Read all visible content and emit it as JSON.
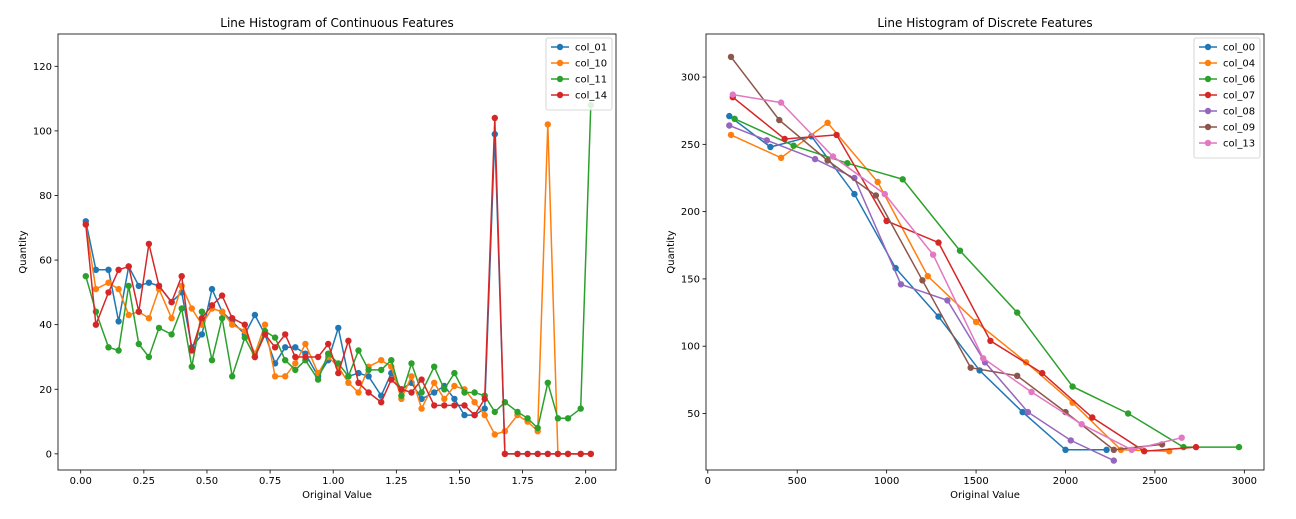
{
  "chart_data": [
    {
      "type": "line",
      "title": "Line Histogram of Continuous Features",
      "xlabel": "Original Value",
      "ylabel": "Quantity",
      "xlim": [
        -0.09,
        2.12
      ],
      "ylim": [
        -5,
        130
      ],
      "xticks": [
        0.0,
        0.25,
        0.5,
        0.75,
        1.0,
        1.25,
        1.5,
        1.75,
        2.0
      ],
      "xtick_labels": [
        "0.00",
        "0.25",
        "0.50",
        "0.75",
        "1.00",
        "1.25",
        "1.50",
        "1.75",
        "2.00"
      ],
      "yticks": [
        0,
        20,
        40,
        60,
        80,
        100,
        120
      ],
      "ytick_labels": [
        "0",
        "20",
        "40",
        "60",
        "80",
        "100",
        "120"
      ],
      "grid": false,
      "legend": "top-right",
      "series": [
        {
          "name": "col_01",
          "color": "#1f77b4",
          "x": [
            0.02,
            0.06,
            0.11,
            0.15,
            0.19,
            0.23,
            0.27,
            0.31,
            0.36,
            0.4,
            0.44,
            0.48,
            0.52,
            0.56,
            0.6,
            0.65,
            0.69,
            0.73,
            0.77,
            0.81,
            0.85,
            0.89,
            0.94,
            0.98,
            1.02,
            1.06,
            1.1,
            1.14,
            1.19,
            1.23,
            1.27,
            1.31,
            1.35,
            1.4,
            1.44,
            1.48,
            1.52,
            1.56,
            1.6,
            1.64,
            1.68,
            1.73,
            1.77,
            1.81,
            1.85,
            1.89,
            1.93,
            1.98,
            2.02
          ],
          "y": [
            72,
            57,
            57,
            41,
            58,
            52,
            53,
            52,
            47,
            50,
            33,
            37,
            51,
            44,
            41,
            37,
            43,
            37,
            28,
            33,
            33,
            31,
            24,
            29,
            39,
            24,
            25,
            24,
            18,
            25,
            20,
            22,
            17,
            19,
            21,
            17,
            12,
            12,
            14,
            99,
            0,
            0,
            0,
            0,
            0,
            0,
            0,
            0,
            0
          ]
        },
        {
          "name": "col_10",
          "color": "#ff7f0e",
          "x": [
            0.02,
            0.06,
            0.11,
            0.15,
            0.19,
            0.23,
            0.27,
            0.31,
            0.36,
            0.4,
            0.44,
            0.48,
            0.52,
            0.56,
            0.6,
            0.65,
            0.69,
            0.73,
            0.77,
            0.81,
            0.85,
            0.89,
            0.94,
            0.98,
            1.02,
            1.06,
            1.1,
            1.14,
            1.19,
            1.23,
            1.27,
            1.31,
            1.35,
            1.4,
            1.44,
            1.48,
            1.52,
            1.56,
            1.6,
            1.64,
            1.68,
            1.73,
            1.77,
            1.81,
            1.85,
            1.89,
            1.93,
            1.98,
            2.02
          ],
          "y": [
            71,
            51,
            53,
            51,
            43,
            44,
            42,
            51,
            42,
            52,
            45,
            40,
            45,
            44,
            40,
            38,
            31,
            40,
            24,
            24,
            28,
            34,
            25,
            30,
            27,
            22,
            19,
            27,
            29,
            27,
            17,
            24,
            14,
            22,
            17,
            21,
            20,
            16,
            12,
            6,
            7,
            12,
            10,
            7,
            102,
            0,
            0,
            0,
            0
          ]
        },
        {
          "name": "col_11",
          "color": "#2ca02c",
          "x": [
            0.02,
            0.06,
            0.11,
            0.15,
            0.19,
            0.23,
            0.27,
            0.31,
            0.36,
            0.4,
            0.44,
            0.48,
            0.52,
            0.56,
            0.6,
            0.65,
            0.69,
            0.73,
            0.77,
            0.81,
            0.85,
            0.89,
            0.94,
            0.98,
            1.02,
            1.06,
            1.1,
            1.14,
            1.19,
            1.23,
            1.27,
            1.31,
            1.35,
            1.4,
            1.44,
            1.48,
            1.52,
            1.56,
            1.6,
            1.64,
            1.68,
            1.73,
            1.77,
            1.81,
            1.85,
            1.89,
            1.93,
            1.98,
            2.02
          ],
          "y": [
            55,
            44,
            33,
            32,
            52,
            34,
            30,
            39,
            37,
            45,
            27,
            44,
            29,
            42,
            24,
            36,
            30,
            38,
            36,
            29,
            26,
            29,
            23,
            31,
            28,
            24,
            32,
            26,
            26,
            29,
            18,
            28,
            19,
            27,
            20,
            25,
            19,
            19,
            18,
            13,
            16,
            13,
            11,
            8,
            22,
            11,
            11,
            14,
            108
          ]
        },
        {
          "name": "col_14",
          "color": "#d62728",
          "x": [
            0.02,
            0.06,
            0.11,
            0.15,
            0.19,
            0.23,
            0.27,
            0.31,
            0.36,
            0.4,
            0.44,
            0.48,
            0.52,
            0.56,
            0.6,
            0.65,
            0.69,
            0.73,
            0.77,
            0.81,
            0.85,
            0.89,
            0.94,
            0.98,
            1.02,
            1.06,
            1.1,
            1.14,
            1.19,
            1.23,
            1.27,
            1.31,
            1.35,
            1.4,
            1.44,
            1.48,
            1.52,
            1.56,
            1.6,
            1.64,
            1.68,
            1.73,
            1.77,
            1.81,
            1.85,
            1.89,
            1.93,
            1.98,
            2.02
          ],
          "y": [
            71,
            40,
            50,
            57,
            58,
            44,
            65,
            52,
            47,
            55,
            32,
            42,
            46,
            49,
            42,
            40,
            30,
            37,
            33,
            37,
            30,
            30,
            30,
            34,
            25,
            35,
            22,
            19,
            16,
            23,
            20,
            19,
            23,
            15,
            15,
            15,
            15,
            12,
            17,
            104,
            0,
            0,
            0,
            0,
            0,
            0,
            0,
            0,
            0
          ]
        }
      ]
    },
    {
      "type": "line",
      "title": "Line Histogram of Discrete Features",
      "xlabel": "Original Value",
      "ylabel": "Quantity",
      "xlim": [
        -10,
        3110
      ],
      "ylim": [
        8,
        332
      ],
      "xticks": [
        0,
        500,
        1000,
        1500,
        2000,
        2500,
        3000
      ],
      "xtick_labels": [
        "0",
        "500",
        "1000",
        "1500",
        "2000",
        "2500",
        "3000"
      ],
      "yticks": [
        50,
        100,
        150,
        200,
        250,
        300
      ],
      "ytick_labels": [
        "50",
        "100",
        "150",
        "200",
        "250",
        "300"
      ],
      "grid": false,
      "legend": "top-right",
      "series": [
        {
          "name": "col_00",
          "color": "#1f77b4",
          "x": [
            120,
            350,
            580,
            820,
            1050,
            1290,
            1520,
            1760,
            2000,
            2230
          ],
          "y": [
            271,
            248,
            256,
            213,
            158,
            122,
            82,
            51,
            23,
            23
          ]
        },
        {
          "name": "col_04",
          "color": "#ff7f0e",
          "x": [
            130,
            410,
            670,
            950,
            1230,
            1500,
            1780,
            2040,
            2310,
            2580
          ],
          "y": [
            257,
            240,
            266,
            222,
            152,
            118,
            88,
            58,
            23,
            22
          ]
        },
        {
          "name": "col_06",
          "color": "#2ca02c",
          "x": [
            150,
            480,
            780,
            1090,
            1410,
            1730,
            2040,
            2350,
            2660,
            2970
          ],
          "y": [
            269,
            249,
            236,
            224,
            171,
            125,
            70,
            50,
            25,
            25
          ]
        },
        {
          "name": "col_07",
          "color": "#d62728",
          "x": [
            140,
            430,
            720,
            1000,
            1290,
            1580,
            1870,
            2150,
            2440,
            2730
          ],
          "y": [
            285,
            254,
            257,
            193,
            177,
            104,
            80,
            47,
            22,
            25
          ]
        },
        {
          "name": "col_08",
          "color": "#9467bd",
          "x": [
            120,
            330,
            600,
            820,
            1080,
            1340,
            1550,
            1790,
            2030,
            2270
          ],
          "y": [
            264,
            253,
            239,
            225,
            146,
            134,
            88,
            51,
            30,
            15
          ]
        },
        {
          "name": "col_09",
          "color": "#8c564b",
          "x": [
            130,
            400,
            670,
            940,
            1200,
            1470,
            1730,
            2000,
            2270,
            2540
          ],
          "y": [
            315,
            268,
            238,
            212,
            149,
            84,
            78,
            51,
            23,
            27
          ]
        },
        {
          "name": "col_13",
          "color": "#e377c2",
          "x": [
            140,
            410,
            700,
            990,
            1260,
            1540,
            1810,
            2090,
            2370,
            2650
          ],
          "y": [
            287,
            281,
            241,
            213,
            168,
            91,
            66,
            42,
            23,
            32
          ]
        }
      ]
    }
  ]
}
